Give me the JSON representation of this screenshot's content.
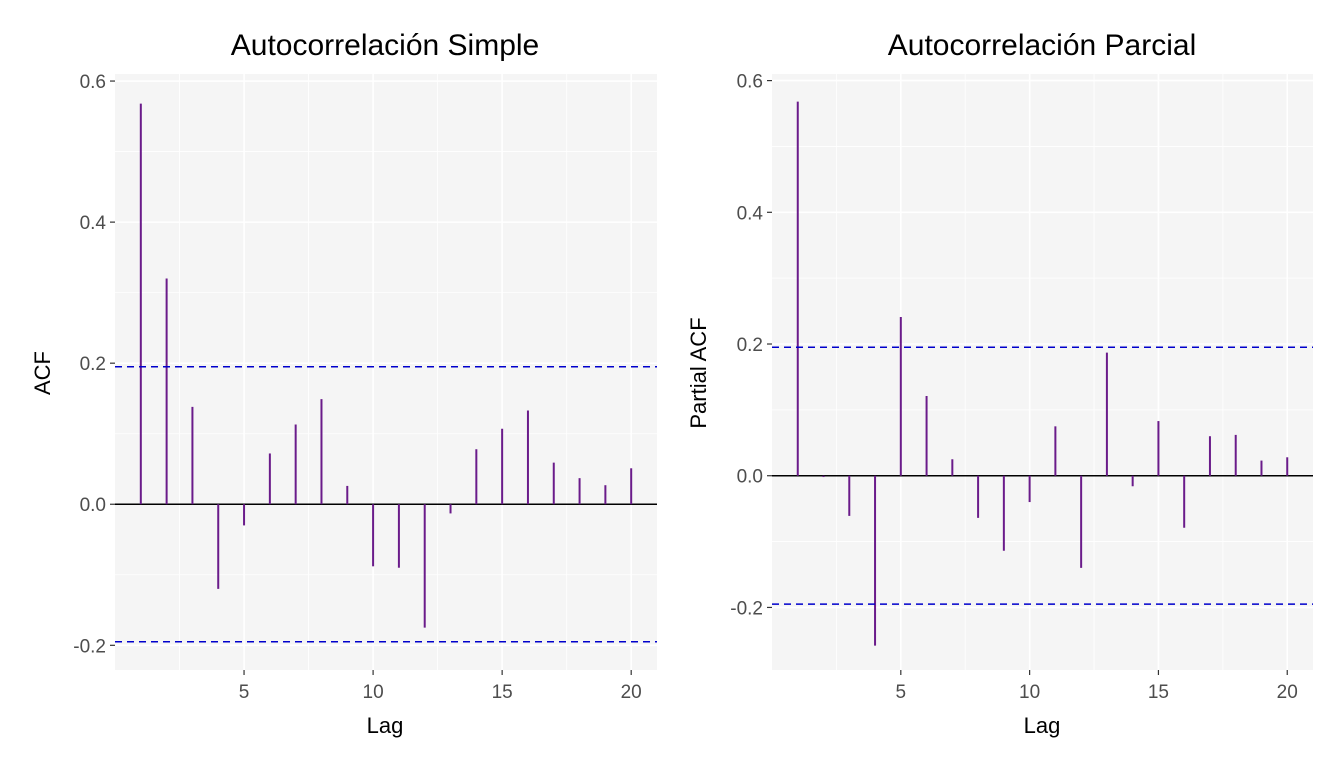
{
  "colors": {
    "panel_background": "#f5f5f5",
    "gridline": "#ffffff",
    "bar": "#6a1b8a",
    "confidence_line": "#0000cc",
    "zero_line": "#000000",
    "tick_text": "#4d4d4d"
  },
  "chart_data": [
    {
      "type": "bar",
      "title": "Autocorrelación Simple",
      "xlabel": "Lag",
      "ylabel": "ACF",
      "xlim": [
        0,
        21
      ],
      "ylim": [
        -0.235,
        0.61
      ],
      "xticks": [
        5,
        10,
        15,
        20
      ],
      "xtick_labels": [
        "5",
        "10",
        "15",
        "20"
      ],
      "yticks": [
        -0.2,
        0.0,
        0.2,
        0.4,
        0.6
      ],
      "ytick_labels": [
        "-0.2",
        "0.0",
        "0.2",
        "0.4",
        "0.6"
      ],
      "grid": true,
      "confidence_bounds": [
        0.195,
        -0.195
      ],
      "x": [
        1,
        2,
        3,
        4,
        5,
        6,
        7,
        8,
        9,
        10,
        11,
        12,
        13,
        14,
        15,
        16,
        17,
        18,
        19,
        20
      ],
      "values": [
        0.568,
        0.32,
        0.138,
        -0.12,
        -0.03,
        0.072,
        0.113,
        0.149,
        0.026,
        -0.088,
        -0.09,
        -0.175,
        -0.013,
        0.078,
        0.107,
        0.133,
        0.059,
        0.037,
        0.027,
        0.051
      ]
    },
    {
      "type": "bar",
      "title": "Autocorrelación Parcial",
      "xlabel": "Lag",
      "ylabel": "Partial ACF",
      "xlim": [
        0,
        21
      ],
      "ylim": [
        -0.295,
        0.61
      ],
      "xticks": [
        5,
        10,
        15,
        20
      ],
      "xtick_labels": [
        "5",
        "10",
        "15",
        "20"
      ],
      "yticks": [
        -0.2,
        0.0,
        0.2,
        0.4,
        0.6
      ],
      "ytick_labels": [
        "-0.2",
        "0.0",
        "0.2",
        "0.4",
        "0.6"
      ],
      "grid": true,
      "confidence_bounds": [
        0.195,
        -0.195
      ],
      "x": [
        1,
        2,
        3,
        4,
        5,
        6,
        7,
        8,
        9,
        10,
        11,
        12,
        13,
        14,
        15,
        16,
        17,
        18,
        19,
        20
      ],
      "values": [
        0.568,
        -0.002,
        -0.061,
        -0.258,
        0.241,
        0.121,
        0.025,
        -0.064,
        -0.114,
        -0.04,
        0.075,
        -0.14,
        0.187,
        -0.016,
        0.083,
        -0.079,
        0.06,
        0.062,
        0.023,
        0.028
      ]
    }
  ]
}
